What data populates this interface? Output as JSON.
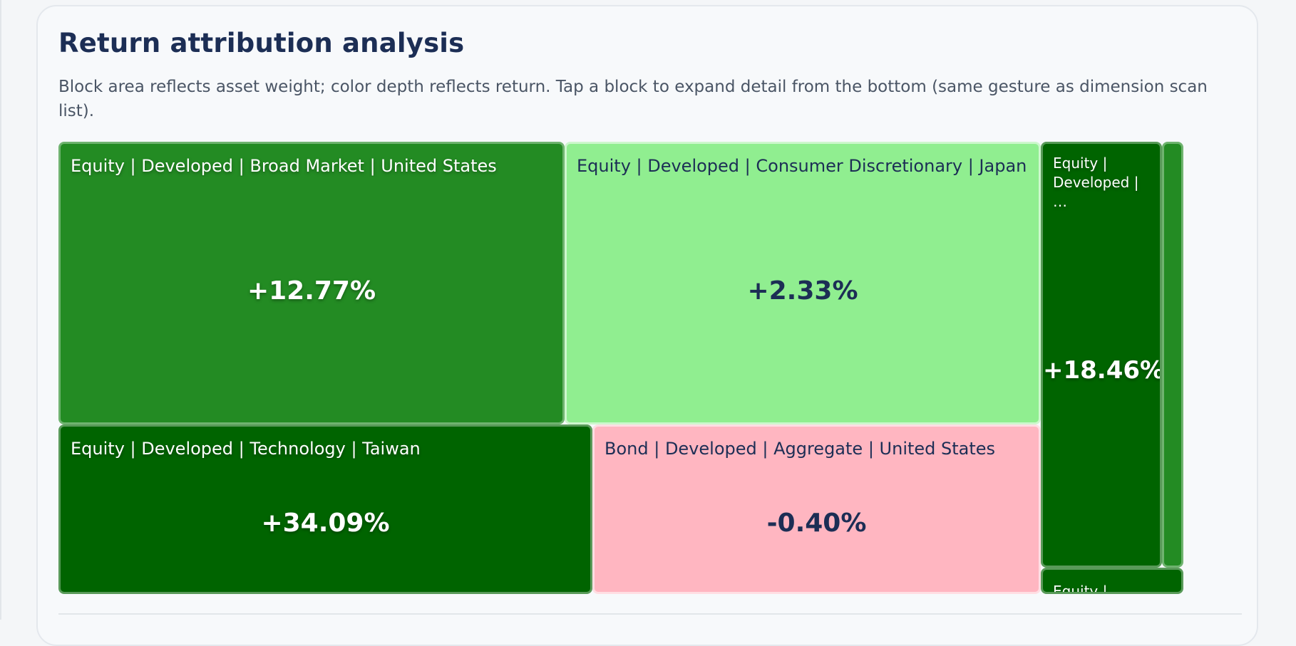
{
  "card": {
    "title": "Return attribution analysis",
    "description": "Block area reflects asset weight; color depth reflects return. Tap a block to expand detail from the bottom (same gesture as dimension scan list)."
  },
  "treemap": {
    "tiles": [
      {
        "label": "Equity | Developed | Broad Market | United States",
        "value": "+12.77%",
        "color": "#238b23"
      },
      {
        "label": "Equity | Developed | Consumer Discretionary | Japan",
        "value": "+2.33%",
        "color": "#90ee90"
      },
      {
        "label": "Equity | Developed | …",
        "value": "+18.46%",
        "color": "#006400"
      },
      {
        "label": "",
        "value": "",
        "color": "#238b23"
      },
      {
        "label": "Equity | Developed | Technology | Taiwan",
        "value": "+34.09%",
        "color": "#006400"
      },
      {
        "label": "Bond | Developed | Aggregate | United States",
        "value": "-0.40%",
        "color": "#ffb6c1"
      },
      {
        "label": "Equity |",
        "value": "",
        "color": "#006400"
      }
    ]
  }
}
